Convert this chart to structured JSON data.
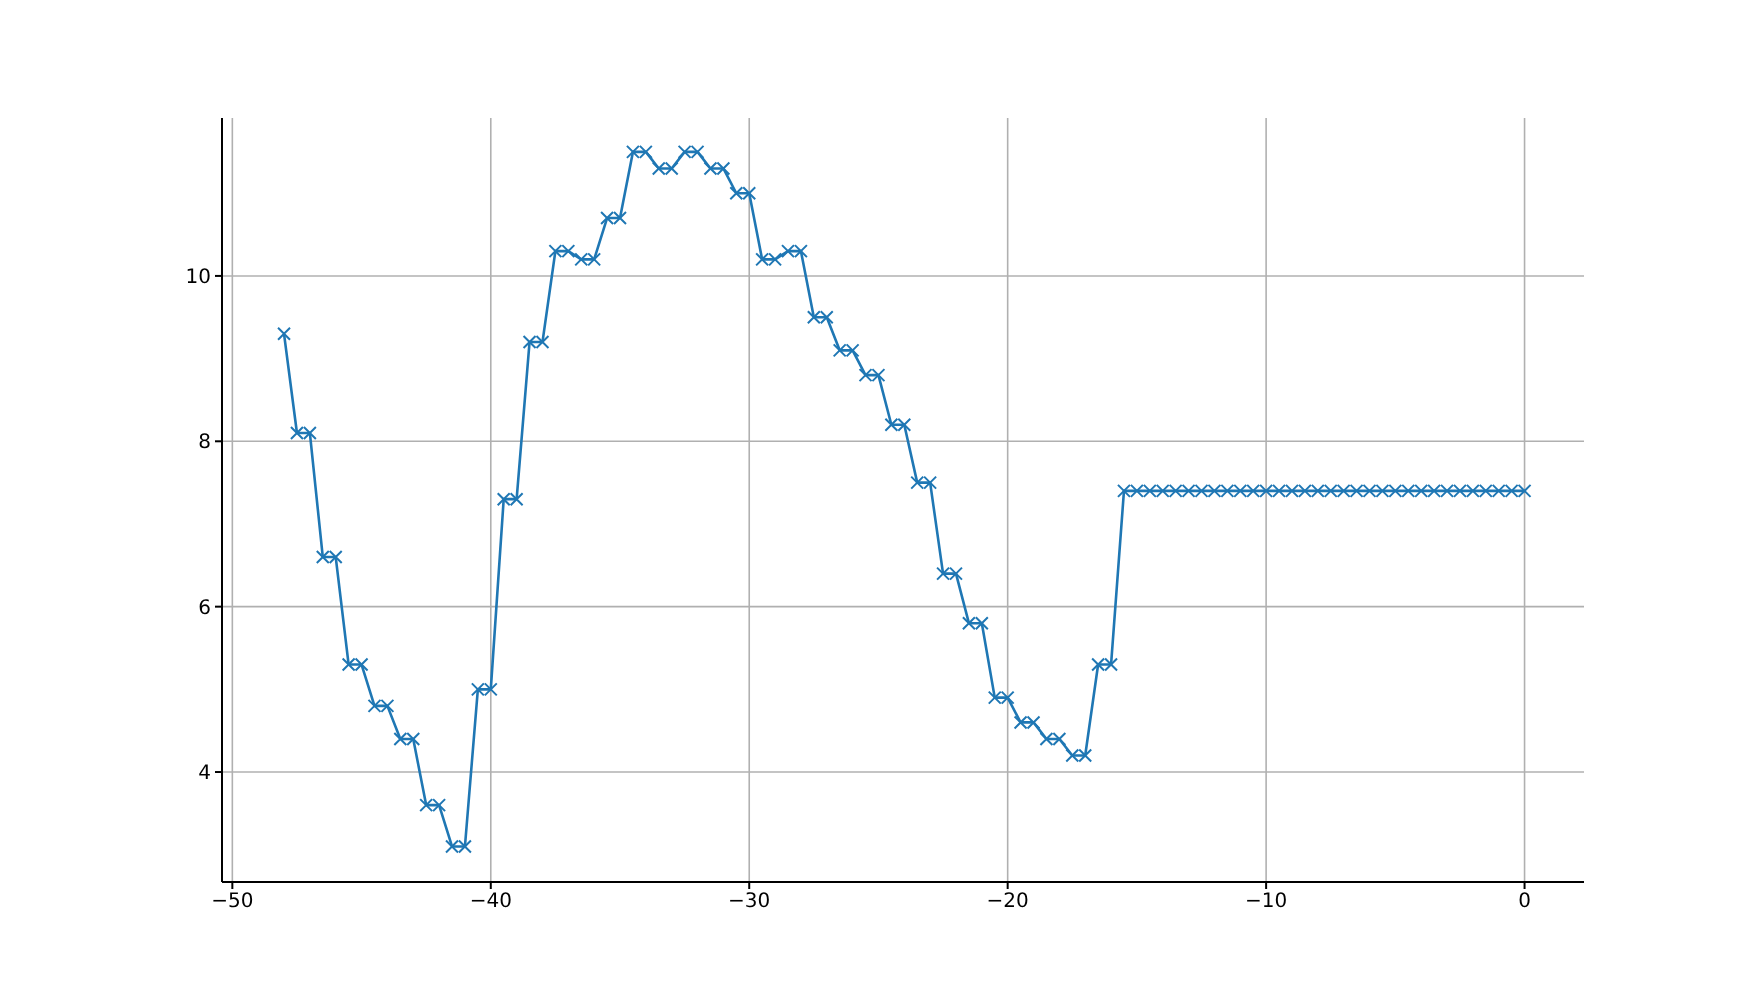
{
  "chart_data": {
    "type": "line",
    "x": [
      -48,
      -47.5,
      -47,
      -46.5,
      -46,
      -45.5,
      -45,
      -44.5,
      -44,
      -43.5,
      -43,
      -42.5,
      -42,
      -41.5,
      -41,
      -40.5,
      -40,
      -39.5,
      -39,
      -38.5,
      -38,
      -37.5,
      -37,
      -36.5,
      -36,
      -35.5,
      -35,
      -34.5,
      -34,
      -33.5,
      -33,
      -32.5,
      -32,
      -31.5,
      -31,
      -30.5,
      -30,
      -29.5,
      -29,
      -28.5,
      -28,
      -27.5,
      -27,
      -26.5,
      -26,
      -25.5,
      -25,
      -24.5,
      -24,
      -23.5,
      -23,
      -22.5,
      -22,
      -21.5,
      -21,
      -20.5,
      -20,
      -19.5,
      -19,
      -18.5,
      -18,
      -17.5,
      -17,
      -16.5,
      -16,
      -15.5,
      -15,
      -14.5,
      -14,
      -13.5,
      -13,
      -12.5,
      -12,
      -11.5,
      -11,
      -10.5,
      -10,
      -9.5,
      -9,
      -8.5,
      -8,
      -7.5,
      -7,
      -6.5,
      -6,
      -5.5,
      -5,
      -4.5,
      -4,
      -3.5,
      -3,
      -2.5,
      -2,
      -1.5,
      -1,
      -0.5,
      0
    ],
    "series": [
      {
        "color": "#1f77b4",
        "values": [
          9.3,
          8.1,
          8.1,
          6.6,
          6.6,
          5.3,
          5.3,
          4.8,
          4.8,
          4.4,
          4.4,
          3.6,
          3.6,
          3.1,
          3.1,
          5.0,
          5.0,
          7.3,
          7.3,
          9.2,
          9.2,
          10.3,
          10.3,
          10.2,
          10.2,
          10.7,
          10.7,
          11.5,
          11.5,
          11.3,
          11.3,
          11.5,
          11.5,
          11.3,
          11.3,
          11.0,
          11.0,
          10.2,
          10.2,
          10.3,
          10.3,
          9.5,
          9.5,
          9.1,
          9.1,
          8.8,
          8.8,
          8.2,
          8.2,
          7.5,
          7.5,
          6.4,
          6.4,
          5.8,
          5.8,
          4.9,
          4.9,
          4.6,
          4.6,
          4.4,
          4.4,
          4.2,
          4.2,
          5.3,
          5.3,
          7.4,
          7.4,
          7.4,
          7.4,
          7.4,
          7.4,
          7.4,
          7.4,
          7.4,
          7.4,
          7.4,
          7.4,
          7.4,
          7.4,
          7.4,
          7.4,
          7.4,
          7.4,
          7.4,
          7.4,
          7.4,
          7.4,
          7.4,
          7.4,
          7.4,
          7.4,
          7.4,
          7.4,
          7.4,
          7.4,
          7.4,
          7.4
        ]
      }
    ],
    "xlim": [
      -50.4,
      2.3
    ],
    "ylim": [
      2.67,
      11.91
    ],
    "xticks": [
      {
        "value": -50,
        "label": "−50"
      },
      {
        "value": -40,
        "label": "−40"
      },
      {
        "value": -30,
        "label": "−30"
      },
      {
        "value": -20,
        "label": "−20"
      },
      {
        "value": -10,
        "label": "−10"
      },
      0
    ],
    "yticks": [
      4,
      6,
      8,
      10
    ],
    "grid": true,
    "marker": "cross",
    "line_style": "solid"
  }
}
